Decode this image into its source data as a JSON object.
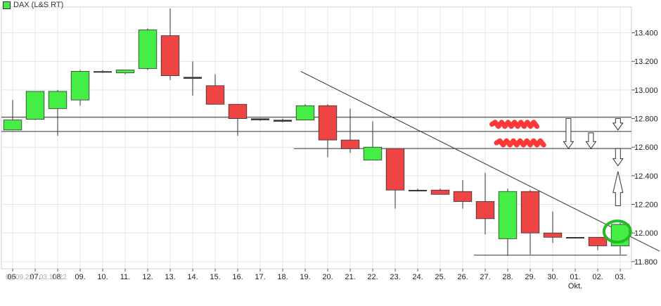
{
  "legend": {
    "label": "DAX (L&S RT)",
    "color": "#44ee44"
  },
  "date_range": "06.09.22 - 03.10.22",
  "colors": {
    "up": "#44ee44",
    "down": "#ee4444",
    "grid": "#e4e4e4",
    "text": "#222222"
  },
  "chart_data": {
    "type": "candlestick",
    "title": "DAX (L&S RT)",
    "ylim": [
      11750,
      13580
    ],
    "y_ticks": [
      11800,
      12000,
      12200,
      12400,
      12600,
      12800,
      13000,
      13200,
      13400
    ],
    "y_tick_labels": [
      "11.800",
      "12.000",
      "12.200",
      "12.400",
      "12.600",
      "12.800",
      "13.000",
      "13.200",
      "13.400"
    ],
    "x_labels": [
      "06.",
      "07.",
      "08.",
      "09.",
      "10.",
      "11.",
      "12.",
      "13.",
      "14.",
      "15.",
      "16.",
      "17.",
      "18.",
      "19.",
      "20.",
      "21.",
      "22.",
      "23.",
      "24.",
      "25.",
      "26.",
      "27.",
      "28.",
      "29.",
      "30.",
      "01.",
      "02.",
      "03."
    ],
    "x_sublabel": {
      "index": 25,
      "text": "Okt."
    },
    "grid": true,
    "candles": [
      {
        "x": "06.",
        "o": 12720,
        "h": 12930,
        "l": 12720,
        "c": 12790
      },
      {
        "x": "07.",
        "o": 12795,
        "h": 12990,
        "l": 12790,
        "c": 12990
      },
      {
        "x": "08.",
        "o": 12870,
        "h": 13000,
        "l": 12680,
        "c": 12990
      },
      {
        "x": "09.",
        "o": 12930,
        "h": 13140,
        "l": 12890,
        "c": 13130
      },
      {
        "x": "10.",
        "o": 13130,
        "h": 13140,
        "l": 13120,
        "c": 13130
      },
      {
        "x": "11.",
        "o": 13120,
        "h": 13140,
        "l": 13110,
        "c": 13140
      },
      {
        "x": "12.",
        "o": 13150,
        "h": 13430,
        "l": 13140,
        "c": 13420
      },
      {
        "x": "13.",
        "o": 13380,
        "h": 13570,
        "l": 13070,
        "c": 13100
      },
      {
        "x": "14.",
        "o": 13090,
        "h": 13200,
        "l": 12960,
        "c": 13080
      },
      {
        "x": "15.",
        "o": 13030,
        "h": 13110,
        "l": 12900,
        "c": 12900
      },
      {
        "x": "16.",
        "o": 12900,
        "h": 12900,
        "l": 12680,
        "c": 12800
      },
      {
        "x": "17.",
        "o": 12800,
        "h": 12800,
        "l": 12785,
        "c": 12790
      },
      {
        "x": "18.",
        "o": 12790,
        "h": 12800,
        "l": 12775,
        "c": 12780
      },
      {
        "x": "19.",
        "o": 12790,
        "h": 12900,
        "l": 12790,
        "c": 12890
      },
      {
        "x": "20.",
        "o": 12890,
        "h": 12900,
        "l": 12530,
        "c": 12650
      },
      {
        "x": "21.",
        "o": 12650,
        "h": 12870,
        "l": 12560,
        "c": 12590
      },
      {
        "x": "22.",
        "o": 12510,
        "h": 12780,
        "l": 12510,
        "c": 12600
      },
      {
        "x": "23.",
        "o": 12590,
        "h": 12590,
        "l": 12170,
        "c": 12300
      },
      {
        "x": "24.",
        "o": 12300,
        "h": 12310,
        "l": 12290,
        "c": 12300
      },
      {
        "x": "25.",
        "o": 12300,
        "h": 12310,
        "l": 12270,
        "c": 12270
      },
      {
        "x": "26.",
        "o": 12290,
        "h": 12370,
        "l": 12170,
        "c": 12220
      },
      {
        "x": "27.",
        "o": 12220,
        "h": 12420,
        "l": 11990,
        "c": 12100
      },
      {
        "x": "28.",
        "o": 11960,
        "h": 12310,
        "l": 11840,
        "c": 12290
      },
      {
        "x": "29.",
        "o": 12290,
        "h": 12300,
        "l": 11850,
        "c": 12000
      },
      {
        "x": "30.",
        "o": 12000,
        "h": 12150,
        "l": 11930,
        "c": 11970
      },
      {
        "x": "01.",
        "o": 11970,
        "h": 11970,
        "l": 11965,
        "c": 11968
      },
      {
        "x": "02.",
        "o": 11970,
        "h": 11970,
        "l": 11880,
        "c": 11910
      },
      {
        "x": "03.",
        "o": 11910,
        "h": 12070,
        "l": 11850,
        "c": 12060
      }
    ],
    "horizontal_lines": [
      {
        "y": 12810,
        "from_index": 0,
        "to_end": true
      },
      {
        "y": 12710,
        "from_index": 0,
        "to_end": true
      },
      {
        "y": 12590,
        "from_index": 13,
        "to_end": true
      },
      {
        "y": 11845,
        "from_index": 21,
        "to_index": 27
      }
    ],
    "trend_line": {
      "from": {
        "index": 12.8,
        "y": 13130
      },
      "to": {
        "index": 29.8,
        "y": 11790
      }
    },
    "annotations": {
      "red_scribbles": [
        {
          "index_from": 21.3,
          "index_to": 23.3,
          "y": 12760
        },
        {
          "index_from": 21.5,
          "index_to": 23.6,
          "y": 12630
        }
      ],
      "down_arrows": [
        {
          "index": 24.7,
          "y_top": 12800,
          "y_bottom": 12590
        },
        {
          "index": 25.7,
          "y_top": 12700,
          "y_bottom": 12590
        },
        {
          "index": 26.9,
          "y_top": 12800,
          "y_bottom": 12720
        }
      ],
      "up_arrows": [
        {
          "index": 26.9,
          "y_top": 12430,
          "y_bottom": 12190
        }
      ],
      "small_down_arrow_right": {
        "index": 26.9,
        "y_top": 12590,
        "y_bottom": 12470
      },
      "green_circle": {
        "index": 26.9,
        "y": 12010
      }
    }
  }
}
